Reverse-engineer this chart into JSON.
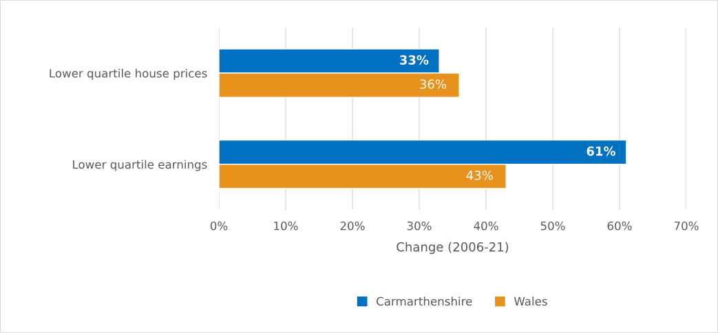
{
  "chart_data": {
    "type": "bar",
    "orientation": "horizontal",
    "xlabel": "Change (2006-21)",
    "categories": [
      "Lower quartile house prices",
      "Lower quartile earnings"
    ],
    "series": [
      {
        "name": "Carmarthenshire",
        "color": "#0070c0",
        "values": [
          33,
          61
        ],
        "value_labels": [
          "33%",
          "61%"
        ]
      },
      {
        "name": "Wales",
        "color": "#e8921e",
        "values": [
          36,
          43
        ],
        "value_labels": [
          "36%",
          "43%"
        ]
      }
    ],
    "xlim": [
      0,
      70
    ],
    "xticks": [
      {
        "value": 0,
        "label": "0%"
      },
      {
        "value": 10,
        "label": "10%"
      },
      {
        "value": 20,
        "label": "20%"
      },
      {
        "value": 30,
        "label": "30%"
      },
      {
        "value": 40,
        "label": "40%"
      },
      {
        "value": 50,
        "label": "50%"
      },
      {
        "value": 60,
        "label": "60%"
      },
      {
        "value": 70,
        "label": "70%"
      }
    ],
    "grid": "x",
    "legend": "bottom"
  }
}
